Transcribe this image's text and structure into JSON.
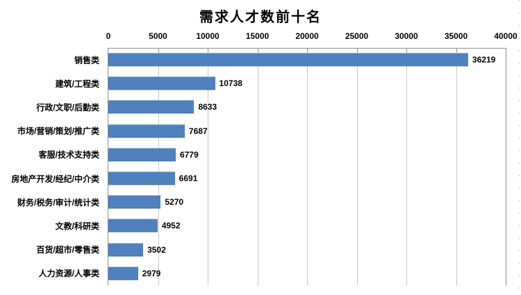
{
  "chart_data": {
    "type": "bar",
    "orientation": "horizontal",
    "title": "需求人才数前十名",
    "categories": [
      "销售类",
      "建筑/工程类",
      "行政/文职/后勤类",
      "市场/营销/策划/推广类",
      "客服/技术支持类",
      "房地产开发/经纪/中介类",
      "财务/税务/审计/统计类",
      "文教/科研类",
      "百货/超市/零售类",
      "人力资源/人事类"
    ],
    "values": [
      36219,
      10738,
      8633,
      7687,
      6779,
      6691,
      5270,
      4952,
      3502,
      2979
    ],
    "value_labels": [
      "36219",
      "10738",
      "8633",
      "7687",
      "6779",
      "6691",
      "5270",
      "4952",
      "3502",
      "2979"
    ],
    "xlabel": "",
    "ylabel": "",
    "xlim": [
      0,
      40000
    ],
    "x_ticks": [
      0,
      5000,
      10000,
      15000,
      20000,
      25000,
      30000,
      35000,
      40000
    ],
    "x_tick_labels": [
      "0",
      "5000",
      "10000",
      "15000",
      "20000",
      "25000",
      "30000",
      "35000",
      "40000"
    ],
    "axis_position": "top",
    "grid": true,
    "legend": "none",
    "data_labels": true,
    "colors": {
      "bar": "#4F81BD",
      "bar_edge": "#3E6DA5",
      "gridline": "#C9C9C9",
      "axis_line": "#8E8E8E",
      "text": "#000000",
      "background": "#FFFFFF"
    }
  }
}
